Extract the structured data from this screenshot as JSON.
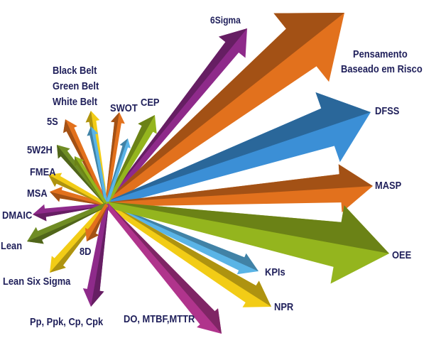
{
  "diagram": {
    "colors": {
      "orange": "#e2711d",
      "blue": "#3b8fd6",
      "lightblue": "#5ab4e6",
      "green": "#94b51e",
      "olive": "#6f8c24",
      "purple": "#8e2a8a",
      "magenta": "#b0348c",
      "yellow": "#f2cc16",
      "gold": "#e8b217",
      "label": "#1f1f5a"
    },
    "arrows": [
      {
        "id": "pensamento",
        "color": "orange",
        "label": "Pensamento Baseado em Risco"
      },
      {
        "id": "6sigma",
        "color": "purple",
        "label": "6Sigma"
      },
      {
        "id": "dfss",
        "color": "blue",
        "label": "DFSS"
      },
      {
        "id": "masp",
        "color": "orange",
        "label": "MASP"
      },
      {
        "id": "oee",
        "color": "green",
        "label": "OEE"
      },
      {
        "id": "kpis",
        "color": "lightblue",
        "label": "KPIs"
      },
      {
        "id": "npr",
        "color": "yellow",
        "label": "NPR"
      },
      {
        "id": "do-mtbf",
        "color": "magenta",
        "label": "DO, MTBF,MTTR"
      },
      {
        "id": "pp-ppk",
        "color": "purple",
        "label": "Pp, Ppk, Cp, Cpk"
      },
      {
        "id": "8d",
        "color": "orange",
        "label": "8D"
      },
      {
        "id": "lean-six-sigma",
        "color": "yellow",
        "label": "Lean Six Sigma"
      },
      {
        "id": "lean",
        "color": "olive",
        "label": "Lean"
      },
      {
        "id": "dmaic",
        "color": "purple",
        "label": "DMAIC"
      },
      {
        "id": "msa",
        "color": "orange",
        "label": "MSA"
      },
      {
        "id": "fmea",
        "color": "yellow",
        "label": "FMEA"
      },
      {
        "id": "5w2h",
        "color": "olive",
        "label": "5W2H"
      },
      {
        "id": "5s",
        "color": "orange",
        "label": "5S"
      },
      {
        "id": "belts",
        "color": "yellow",
        "label": "Black Belt Green Belt White Belt"
      },
      {
        "id": "swot",
        "color": "orange",
        "label": "SWOT"
      },
      {
        "id": "cep",
        "color": "green",
        "label": "CEP"
      }
    ],
    "labels": {
      "6sigma": "6Sigma",
      "pensamento_1": "Pensamento",
      "pensamento_2": "Baseado em Risco",
      "dfss": "DFSS",
      "masp": "MASP",
      "oee": "OEE",
      "kpis": "KPIs",
      "npr": "NPR",
      "do_mtbf": "DO, MTBF,MTTR",
      "pp_ppk": "Pp, Ppk, Cp, Cpk",
      "lean_six_sigma": "Lean Six Sigma",
      "8d": "8D",
      "lean": "Lean",
      "dmaic": "DMAIC",
      "msa": "MSA",
      "fmea": "FMEA",
      "5w2h": "5W2H",
      "5s": "5S",
      "black_belt": "Black Belt",
      "green_belt": "Green Belt",
      "white_belt": "White Belt",
      "swot": "SWOT",
      "cep": "CEP"
    }
  }
}
